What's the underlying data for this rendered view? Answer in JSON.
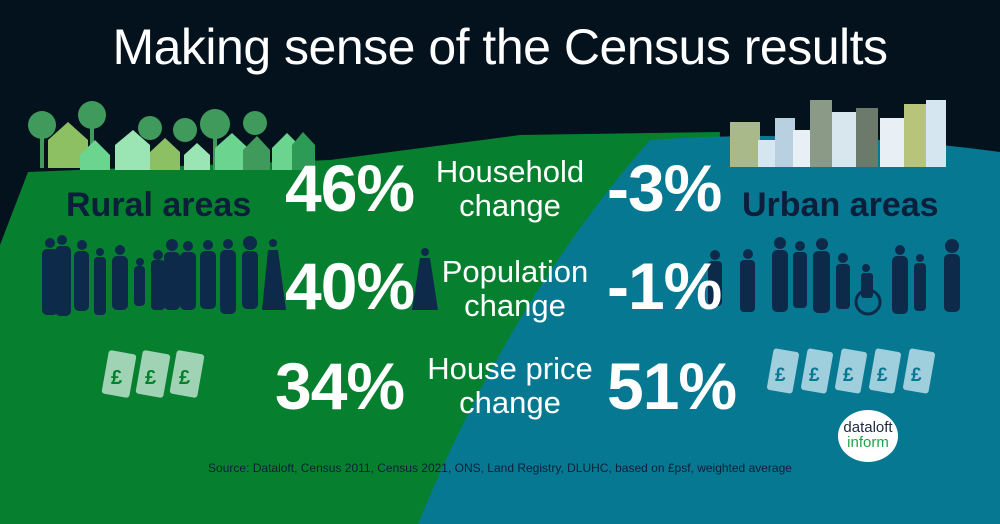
{
  "title": "Making sense of the Census results",
  "rural": {
    "label": "Rural areas",
    "household": "46%",
    "population": "40%",
    "house_price": "34%"
  },
  "urban": {
    "label": "Urban areas",
    "household": "-3%",
    "population": "-1%",
    "house_price": "51%"
  },
  "metrics": {
    "household": [
      "Household",
      "change"
    ],
    "population": [
      "Population",
      "change"
    ],
    "house_price": [
      "House price",
      "change"
    ]
  },
  "source": "Source: Dataloft, Census 2011, Census 2021, ONS, Land Registry, DLUHC, based on £psf, weighted average",
  "logo": {
    "line1": "dataloft",
    "line2": "inform"
  },
  "colors": {
    "background": "#04121e",
    "rural": "#06802f",
    "urban": "#077891",
    "text_dark": "#0b1f3a"
  }
}
